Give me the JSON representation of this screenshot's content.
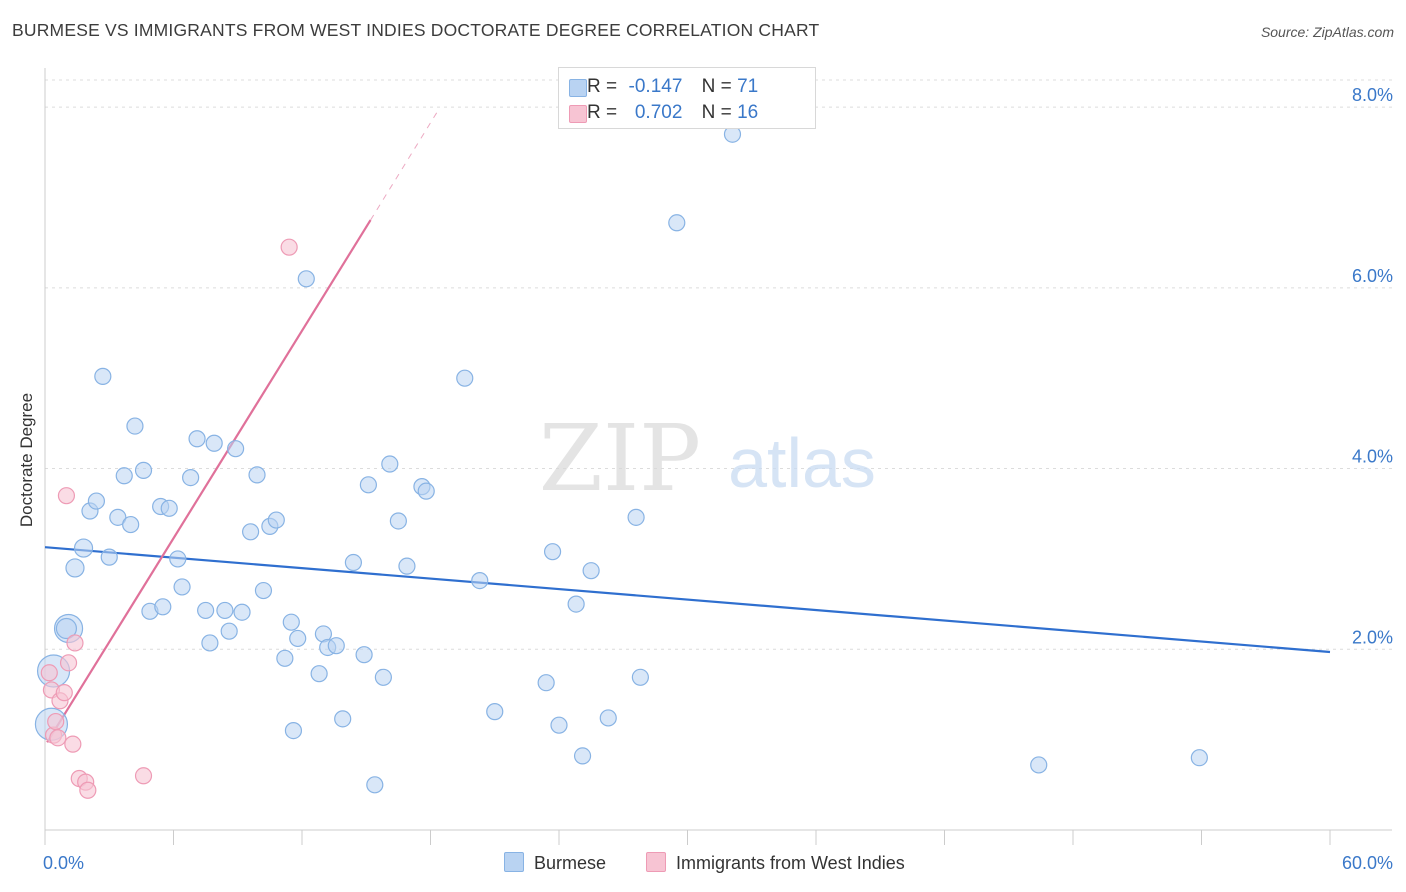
{
  "title": "BURMESE VS IMMIGRANTS FROM WEST INDIES DOCTORATE DEGREE CORRELATION CHART",
  "source": "Source: ZipAtlas.com",
  "watermark": {
    "zip": "ZIP",
    "atlas": "atlas"
  },
  "legend_top": {
    "rows": [
      {
        "r_label": "R =",
        "r_value": "-0.147",
        "n_label": "N =",
        "n_value": "71"
      },
      {
        "r_label": "R =",
        "r_value": "0.702",
        "n_label": "N =",
        "n_value": "16"
      }
    ]
  },
  "colors": {
    "blue_fill": "#b9d3f2",
    "blue_stroke": "#88b3e4",
    "blue_line": "#2f6fcf",
    "pink_fill": "#f7c4d3",
    "pink_stroke": "#ee9bb5",
    "pink_line": "#e0719a",
    "tick_text": "#3a78c9"
  },
  "chart_data": {
    "type": "scatter",
    "title": "BURMESE VS IMMIGRANTS FROM WEST INDIES DOCTORATE DEGREE CORRELATION CHART",
    "xlabel": "",
    "ylabel": "Doctorate Degree",
    "xlim": [
      0,
      60
    ],
    "ylim": [
      0,
      8.3
    ],
    "x_tick_labels": [
      "0.0%",
      "60.0%"
    ],
    "y_ticks": [
      2,
      4,
      6,
      8
    ],
    "y_tick_labels": [
      "2.0%",
      "4.0%",
      "6.0%",
      "8.0%"
    ],
    "grid": true,
    "legend_position": "bottom",
    "series": [
      {
        "name": "Burmese",
        "r": -0.147,
        "n": 71,
        "trend": {
          "x": [
            0,
            60
          ],
          "y": [
            3.13,
            1.97
          ]
        },
        "points": [
          {
            "x": 0.4,
            "y": 1.76,
            "s": 16
          },
          {
            "x": 0.3,
            "y": 1.17,
            "s": 16
          },
          {
            "x": 1.1,
            "y": 2.23,
            "s": 14
          },
          {
            "x": 1.0,
            "y": 2.23,
            "s": 10
          },
          {
            "x": 1.4,
            "y": 2.9,
            "s": 9
          },
          {
            "x": 1.8,
            "y": 3.12,
            "s": 9
          },
          {
            "x": 2.1,
            "y": 3.53,
            "s": 8
          },
          {
            "x": 2.4,
            "y": 3.64,
            "s": 8
          },
          {
            "x": 2.7,
            "y": 5.02,
            "s": 8
          },
          {
            "x": 3.0,
            "y": 3.02,
            "s": 8
          },
          {
            "x": 3.4,
            "y": 3.46,
            "s": 8
          },
          {
            "x": 3.7,
            "y": 3.92,
            "s": 8
          },
          {
            "x": 4.0,
            "y": 3.38,
            "s": 8
          },
          {
            "x": 4.2,
            "y": 4.47,
            "s": 8
          },
          {
            "x": 4.6,
            "y": 3.98,
            "s": 8
          },
          {
            "x": 4.9,
            "y": 2.42,
            "s": 8
          },
          {
            "x": 5.4,
            "y": 3.58,
            "s": 8
          },
          {
            "x": 5.5,
            "y": 2.47,
            "s": 8
          },
          {
            "x": 5.8,
            "y": 3.56,
            "s": 8
          },
          {
            "x": 6.2,
            "y": 3.0,
            "s": 8
          },
          {
            "x": 6.4,
            "y": 2.69,
            "s": 8
          },
          {
            "x": 6.8,
            "y": 3.9,
            "s": 8
          },
          {
            "x": 7.1,
            "y": 4.33,
            "s": 8
          },
          {
            "x": 7.5,
            "y": 2.43,
            "s": 8
          },
          {
            "x": 7.7,
            "y": 2.07,
            "s": 8
          },
          {
            "x": 7.9,
            "y": 4.28,
            "s": 8
          },
          {
            "x": 8.4,
            "y": 2.43,
            "s": 8
          },
          {
            "x": 8.6,
            "y": 2.2,
            "s": 8
          },
          {
            "x": 8.9,
            "y": 4.22,
            "s": 8
          },
          {
            "x": 9.2,
            "y": 2.41,
            "s": 8
          },
          {
            "x": 9.6,
            "y": 3.3,
            "s": 8
          },
          {
            "x": 9.9,
            "y": 3.93,
            "s": 8
          },
          {
            "x": 10.2,
            "y": 2.65,
            "s": 8
          },
          {
            "x": 10.5,
            "y": 3.36,
            "s": 8
          },
          {
            "x": 10.8,
            "y": 3.43,
            "s": 8
          },
          {
            "x": 11.2,
            "y": 1.9,
            "s": 8
          },
          {
            "x": 11.5,
            "y": 2.3,
            "s": 8
          },
          {
            "x": 11.6,
            "y": 1.1,
            "s": 8
          },
          {
            "x": 11.8,
            "y": 2.12,
            "s": 8
          },
          {
            "x": 12.2,
            "y": 6.1,
            "s": 8
          },
          {
            "x": 12.8,
            "y": 1.73,
            "s": 8
          },
          {
            "x": 13.0,
            "y": 2.17,
            "s": 8
          },
          {
            "x": 13.2,
            "y": 2.02,
            "s": 8
          },
          {
            "x": 13.6,
            "y": 2.04,
            "s": 8
          },
          {
            "x": 13.9,
            "y": 1.23,
            "s": 8
          },
          {
            "x": 14.4,
            "y": 2.96,
            "s": 8
          },
          {
            "x": 14.9,
            "y": 1.94,
            "s": 8
          },
          {
            "x": 15.1,
            "y": 3.82,
            "s": 8
          },
          {
            "x": 15.4,
            "y": 0.5,
            "s": 8
          },
          {
            "x": 15.8,
            "y": 1.69,
            "s": 8
          },
          {
            "x": 16.1,
            "y": 4.05,
            "s": 8
          },
          {
            "x": 16.5,
            "y": 3.42,
            "s": 8
          },
          {
            "x": 16.9,
            "y": 2.92,
            "s": 8
          },
          {
            "x": 17.6,
            "y": 3.8,
            "s": 8
          },
          {
            "x": 17.8,
            "y": 3.75,
            "s": 8
          },
          {
            "x": 19.6,
            "y": 5.0,
            "s": 8
          },
          {
            "x": 20.3,
            "y": 2.76,
            "s": 8
          },
          {
            "x": 21.0,
            "y": 1.31,
            "s": 8
          },
          {
            "x": 23.4,
            "y": 1.63,
            "s": 8
          },
          {
            "x": 23.7,
            "y": 3.08,
            "s": 8
          },
          {
            "x": 24.0,
            "y": 1.16,
            "s": 8
          },
          {
            "x": 24.8,
            "y": 2.5,
            "s": 8
          },
          {
            "x": 25.1,
            "y": 0.82,
            "s": 8
          },
          {
            "x": 25.5,
            "y": 2.87,
            "s": 8
          },
          {
            "x": 26.3,
            "y": 1.24,
            "s": 8
          },
          {
            "x": 27.6,
            "y": 3.46,
            "s": 8
          },
          {
            "x": 27.8,
            "y": 1.69,
            "s": 8
          },
          {
            "x": 29.5,
            "y": 6.72,
            "s": 8
          },
          {
            "x": 32.1,
            "y": 7.7,
            "s": 8
          },
          {
            "x": 46.4,
            "y": 0.72,
            "s": 8
          },
          {
            "x": 53.9,
            "y": 0.8,
            "s": 8
          }
        ]
      },
      {
        "name": "Immigrants from West Indies",
        "r": 0.702,
        "n": 16,
        "trend": {
          "x": [
            0.1,
            15.2
          ],
          "y": [
            0.97,
            6.75
          ]
        },
        "trend_extension": {
          "x": [
            15.2,
            18.4
          ],
          "y": [
            6.75,
            7.98
          ]
        },
        "points": [
          {
            "x": 0.2,
            "y": 1.74,
            "s": 8
          },
          {
            "x": 0.3,
            "y": 1.55,
            "s": 8
          },
          {
            "x": 0.4,
            "y": 1.05,
            "s": 8
          },
          {
            "x": 0.6,
            "y": 1.02,
            "s": 8
          },
          {
            "x": 0.7,
            "y": 1.43,
            "s": 8
          },
          {
            "x": 0.9,
            "y": 1.52,
            "s": 8
          },
          {
            "x": 1.0,
            "y": 3.7,
            "s": 8
          },
          {
            "x": 1.1,
            "y": 1.85,
            "s": 8
          },
          {
            "x": 1.3,
            "y": 0.95,
            "s": 8
          },
          {
            "x": 1.4,
            "y": 2.07,
            "s": 8
          },
          {
            "x": 1.6,
            "y": 0.57,
            "s": 8
          },
          {
            "x": 1.9,
            "y": 0.53,
            "s": 8
          },
          {
            "x": 2.0,
            "y": 0.44,
            "s": 8
          },
          {
            "x": 4.6,
            "y": 0.6,
            "s": 8
          },
          {
            "x": 11.4,
            "y": 6.45,
            "s": 8
          },
          {
            "x": 0.5,
            "y": 1.2,
            "s": 8
          }
        ]
      }
    ]
  },
  "bottom_legend": [
    {
      "label": "Burmese"
    },
    {
      "label": "Immigrants from West Indies"
    }
  ]
}
